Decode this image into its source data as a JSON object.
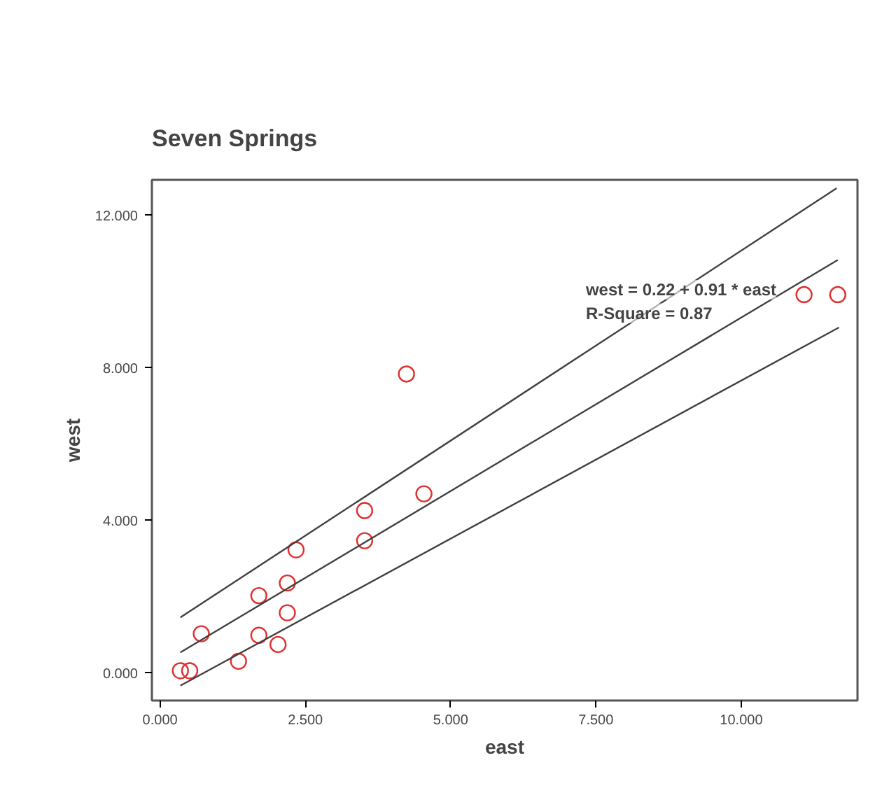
{
  "chart_data": {
    "type": "scatter",
    "title": "Seven Springs",
    "xlabel": "east",
    "ylabel": "west",
    "xlim": [
      -0.14,
      12.0
    ],
    "ylim": [
      -0.72,
      12.93
    ],
    "xticks": [
      {
        "value": 0,
        "label": "0.000"
      },
      {
        "value": 2.5,
        "label": "2.500"
      },
      {
        "value": 5,
        "label": "5.000"
      },
      {
        "value": 7.5,
        "label": "7.500"
      },
      {
        "value": 10,
        "label": "10.000"
      }
    ],
    "yticks": [
      {
        "value": 0,
        "label": "0.000"
      },
      {
        "value": 4,
        "label": "4.000"
      },
      {
        "value": 8,
        "label": "8.000"
      },
      {
        "value": 12,
        "label": "12.000"
      }
    ],
    "grid": false,
    "annotations": [
      "west = 0.22 + 0.91 * east",
      "R-Square = 0.87"
    ],
    "series": [
      {
        "marker": "circle",
        "color": "#e03030",
        "x": [
          0.35,
          0.51,
          0.71,
          1.35,
          1.7,
          1.7,
          2.03,
          2.19,
          2.19,
          2.34,
          3.52,
          3.52,
          4.24,
          4.54,
          11.08,
          11.66
        ],
        "values": [
          0.06,
          0.06,
          1.03,
          0.31,
          2.03,
          0.99,
          0.75,
          2.36,
          1.58,
          3.23,
          4.26,
          3.47,
          7.84,
          4.7,
          9.92,
          9.92
        ]
      },
      {
        "type": "line",
        "color": "#404040",
        "x": [
          0.35,
          11.66
        ],
        "values": [
          0.54,
          10.83
        ]
      },
      {
        "type": "line",
        "color": "#404040",
        "x": [
          0.35,
          11.64
        ],
        "values": [
          1.46,
          12.71
        ]
      },
      {
        "type": "line",
        "color": "#404040",
        "x": [
          0.35,
          11.68
        ],
        "values": [
          -0.33,
          9.06
        ]
      }
    ]
  }
}
